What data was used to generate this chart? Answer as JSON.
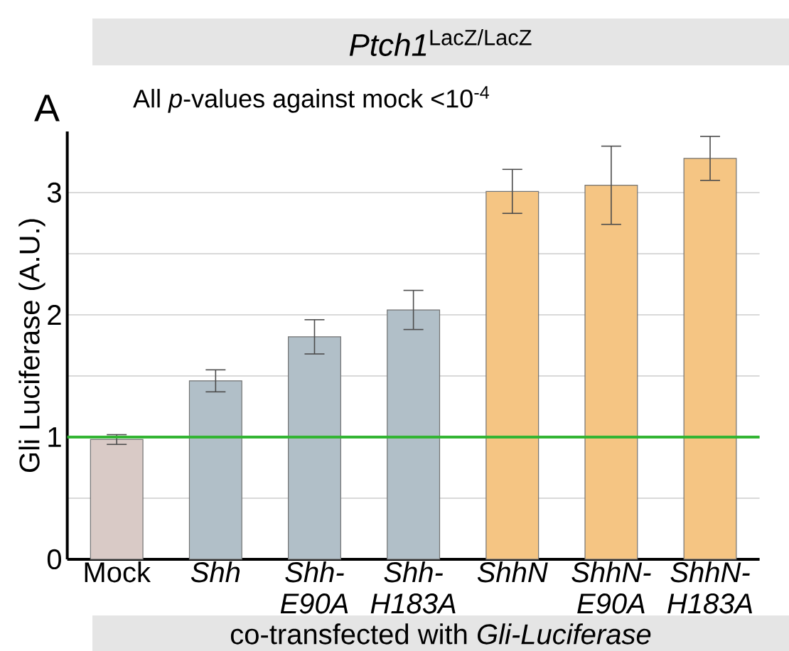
{
  "chart_data": {
    "type": "bar",
    "title": "*Ptch1*$^{LacZ/LacZ}$",
    "subtitle": "All *p*-values against mock <10$^{-4}$",
    "xlabel": "co-transfected with *Gli-Luciferase*",
    "ylabel": "Gli Luciferase (A.U.)",
    "annotations": [
      "A"
    ],
    "categories": [
      "Mock",
      "*Shh*",
      "*Shh-E90A*",
      "*Shh-H183A*",
      "*ShhN*",
      "*ShhN-E90A*",
      "*ShhN-H183A*"
    ],
    "values": [
      0.98,
      1.46,
      1.82,
      2.04,
      3.01,
      3.06,
      3.28
    ],
    "errors": [
      0.04,
      0.09,
      0.14,
      0.16,
      0.18,
      0.32,
      0.18
    ],
    "colors": [
      "#d9cac6",
      "#b1bfc8",
      "#b1bfc8",
      "#b1bfc8",
      "#f5c583",
      "#f5c583",
      "#f5c583"
    ],
    "ylim": [
      0,
      3.5
    ],
    "yticks": [
      0,
      {
        "value": 0.5,
        "label": null
      },
      1,
      {
        "value": 1.5,
        "label": null
      },
      2,
      {
        "value": 2.5,
        "label": null
      },
      3
    ],
    "grid": "y",
    "ref_lines": [
      {
        "axis": "y",
        "value": 1,
        "color": "#33b533"
      }
    ]
  }
}
